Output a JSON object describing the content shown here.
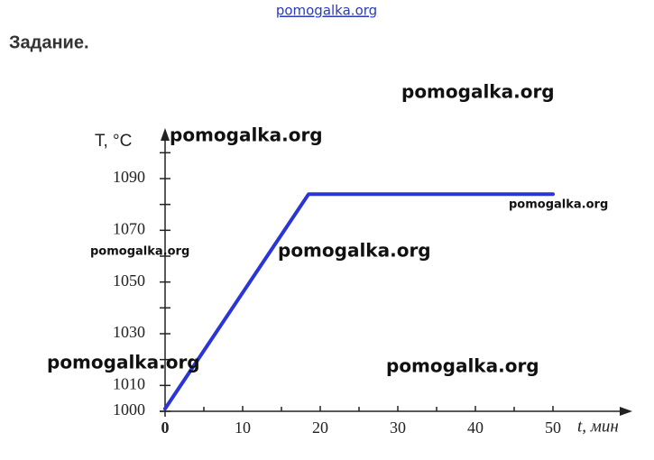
{
  "header": {
    "link": "pomogalka.org",
    "title": "Задание."
  },
  "chart_data": {
    "type": "line",
    "ylabel": "T, °C",
    "xlabel": "t, мин",
    "xlim": [
      0,
      60
    ],
    "ylim": [
      1000,
      1105
    ],
    "xticks": [
      0,
      10,
      20,
      30,
      40,
      50
    ],
    "xminor_ticks": [
      5,
      15,
      25,
      35,
      45
    ],
    "yticks": [
      1000,
      1010,
      1030,
      1050,
      1070,
      1090
    ],
    "yminor_ticks": [
      1020,
      1040,
      1060,
      1080,
      1100
    ],
    "grid": false,
    "series": [
      {
        "color": "#2b35d6",
        "x": [
          0,
          18.5,
          50
        ],
        "values": [
          1001,
          1084,
          1084
        ]
      }
    ]
  },
  "watermarks": [
    "pomogalka.org",
    "pomogalka.org",
    "pomogalka.org",
    "pomogalka.org",
    "pomogalka.org",
    "pomogalka.org",
    "pomogalka.org"
  ]
}
